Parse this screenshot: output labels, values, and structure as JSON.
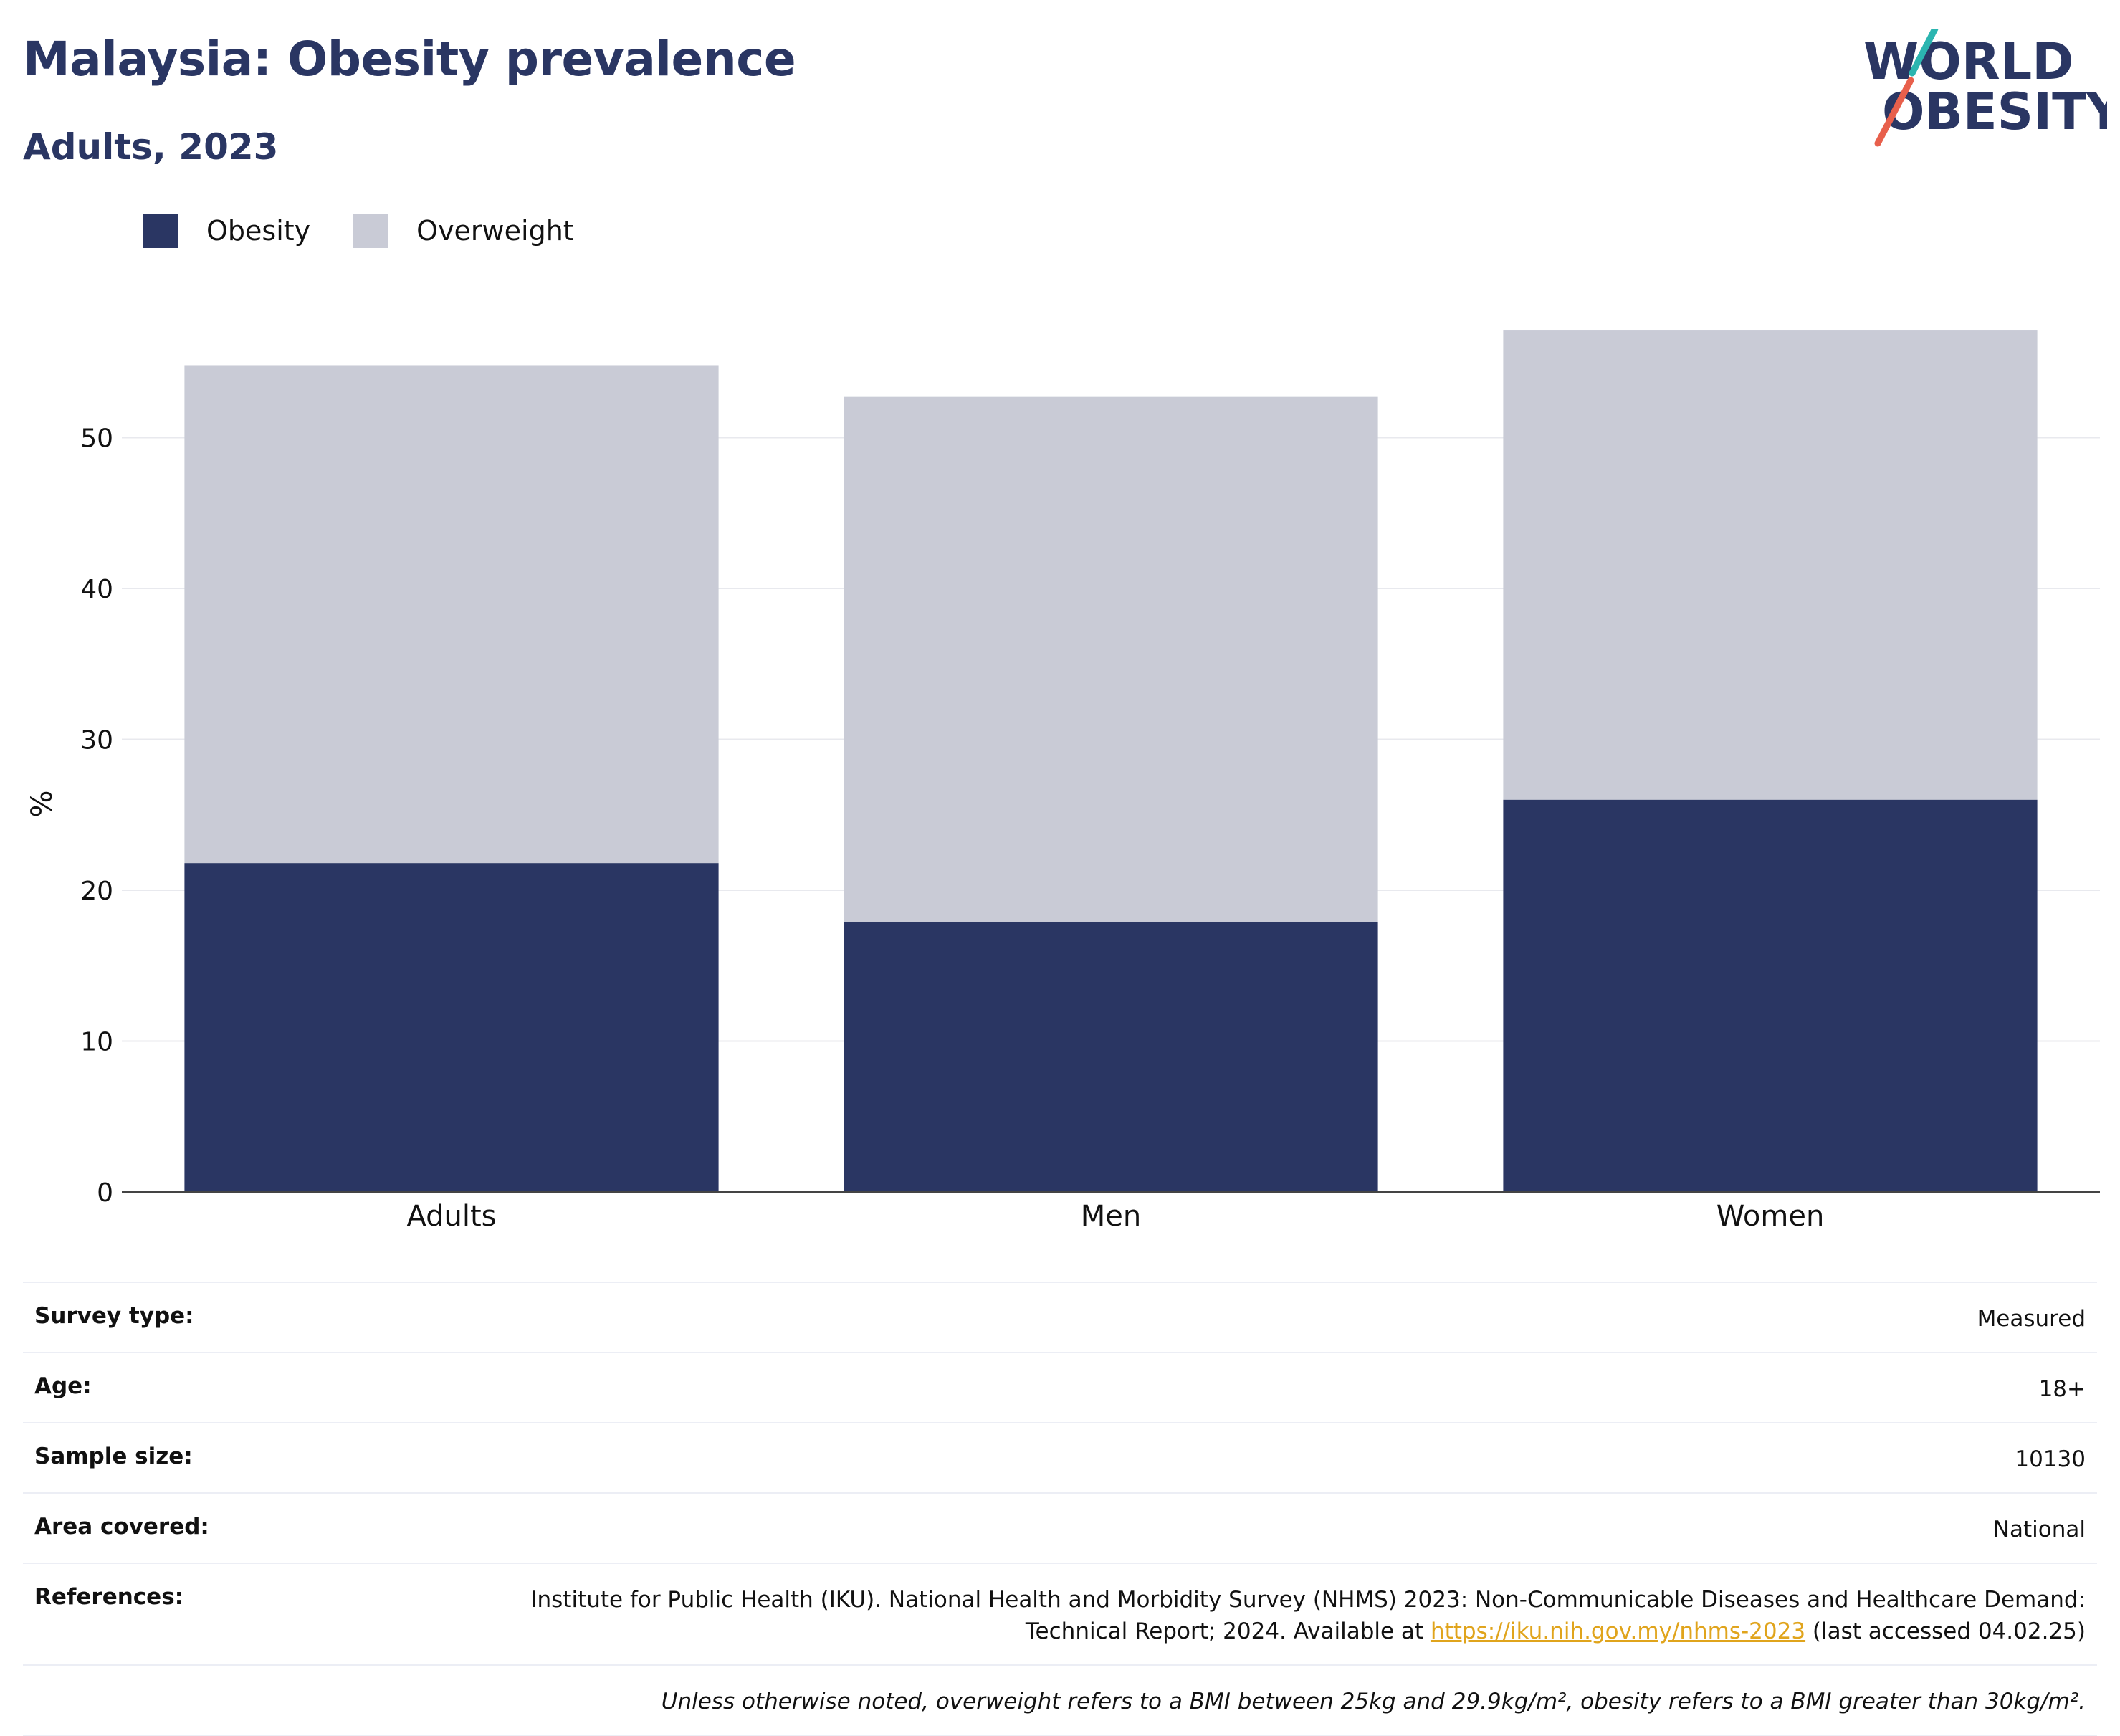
{
  "header": {
    "title": "Malaysia: Obesity prevalence",
    "subtitle": "Adults, 2023"
  },
  "logo": {
    "line1": "WORLD",
    "line2": "OBESITY",
    "colors": {
      "text": "#2a3663",
      "slash_top": "#2bb5b0",
      "slash_bottom": "#e8604c"
    }
  },
  "legend": [
    {
      "label": "Obesity",
      "color": "#2a3663"
    },
    {
      "label": "Overweight",
      "color": "#c9cbd6"
    }
  ],
  "chart_data": {
    "type": "bar",
    "stacked": true,
    "categories": [
      "Adults",
      "Men",
      "Women"
    ],
    "series": [
      {
        "name": "Obesity",
        "color": "#2a3663",
        "values": [
          21.8,
          17.9,
          26.0
        ]
      },
      {
        "name": "Overweight",
        "color": "#c9cbd6",
        "values": [
          33.0,
          34.8,
          31.1
        ]
      }
    ],
    "ylabel": "%",
    "ylim": [
      0,
      60
    ],
    "yticks": [
      0,
      10,
      20,
      30,
      40,
      50
    ],
    "grid": true,
    "legend_position": "top-left"
  },
  "info": {
    "survey_type": {
      "label": "Survey type:",
      "value": "Measured"
    },
    "age": {
      "label": "Age:",
      "value": "18+"
    },
    "sample_size": {
      "label": "Sample size:",
      "value": "10130"
    },
    "area": {
      "label": "Area covered:",
      "value": "National"
    },
    "references": {
      "label": "References:",
      "text_before": "Institute for Public Health (IKU). National Health and Morbidity Survey (NHMS) 2023: Non-Communicable Diseases and Healthcare Demand: Technical Report; 2024. Available at ",
      "link": "https://iku.nih.gov.my/nhms-2023",
      "text_after": " (last accessed 04.02.25)"
    },
    "note": "Unless otherwise noted, overweight refers to a BMI between 25kg and 29.9kg/m², obesity refers to a BMI greater than 30kg/m²."
  }
}
